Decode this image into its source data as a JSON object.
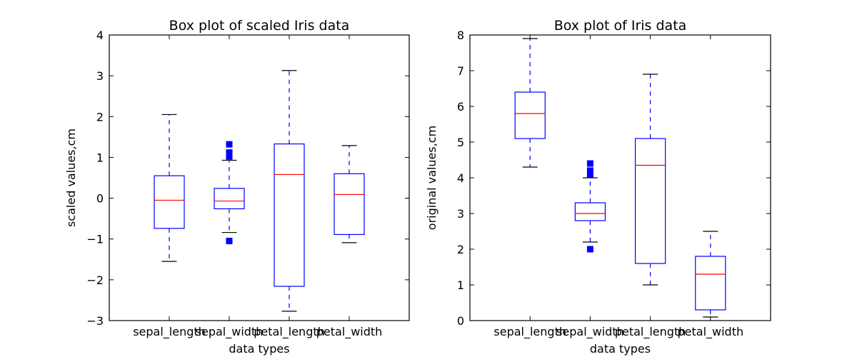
{
  "colors": {
    "box": "#0000ff",
    "median": "#ff0000",
    "whisker": "#0000ff",
    "cap": "#000000",
    "flier": "#0000ff",
    "axes": "#000000",
    "background": "#ffffff"
  },
  "chart_data": [
    {
      "type": "box",
      "title": "Box plot of scaled Iris data",
      "xlabel": "data types",
      "ylabel": "scaled values,cm",
      "ylim": [
        -3,
        4
      ],
      "yticks": [
        -3,
        -2,
        -1,
        0,
        1,
        2,
        3,
        4
      ],
      "ytick_labels": [
        "−3",
        "−2",
        "−1",
        "0",
        "1",
        "2",
        "3",
        "4"
      ],
      "grid": false,
      "categories": [
        "sepal_length",
        "sepal_width",
        "petal_length",
        "petal_width"
      ],
      "boxes": [
        {
          "q1": -0.74,
          "median": -0.05,
          "q3": 0.55,
          "whisker_low": -1.55,
          "whisker_high": 2.05,
          "fliers": []
        },
        {
          "q1": -0.26,
          "median": -0.07,
          "q3": 0.24,
          "whisker_low": -0.84,
          "whisker_high": 0.93,
          "fliers": [
            1.32,
            1.12,
            1.06,
            1.02,
            -1.05
          ]
        },
        {
          "q1": -2.16,
          "median": 0.58,
          "q3": 1.33,
          "whisker_low": -2.77,
          "whisker_high": 3.13,
          "fliers": []
        },
        {
          "q1": -0.89,
          "median": 0.09,
          "q3": 0.6,
          "whisker_low": -1.09,
          "whisker_high": 1.29,
          "fliers": []
        }
      ]
    },
    {
      "type": "box",
      "title": "Box plot of Iris data",
      "xlabel": "data types",
      "ylabel": "original values,cm",
      "ylim": [
        0,
        8
      ],
      "yticks": [
        0,
        1,
        2,
        3,
        4,
        5,
        6,
        7,
        8
      ],
      "ytick_labels": [
        "0",
        "1",
        "2",
        "3",
        "4",
        "5",
        "6",
        "7",
        "8"
      ],
      "grid": false,
      "categories": [
        "sepal_length",
        "sepal_width",
        "petal_length",
        "petal_width"
      ],
      "boxes": [
        {
          "q1": 5.1,
          "median": 5.8,
          "q3": 6.4,
          "whisker_low": 4.3,
          "whisker_high": 7.9,
          "fliers": []
        },
        {
          "q1": 2.8,
          "median": 3.0,
          "q3": 3.3,
          "whisker_low": 2.2,
          "whisker_high": 4.0,
          "fliers": [
            4.4,
            4.2,
            4.1,
            2.0
          ]
        },
        {
          "q1": 1.6,
          "median": 4.35,
          "q3": 5.1,
          "whisker_low": 1.0,
          "whisker_high": 6.9,
          "fliers": []
        },
        {
          "q1": 0.3,
          "median": 1.3,
          "q3": 1.8,
          "whisker_low": 0.1,
          "whisker_high": 2.5,
          "fliers": []
        }
      ]
    }
  ]
}
